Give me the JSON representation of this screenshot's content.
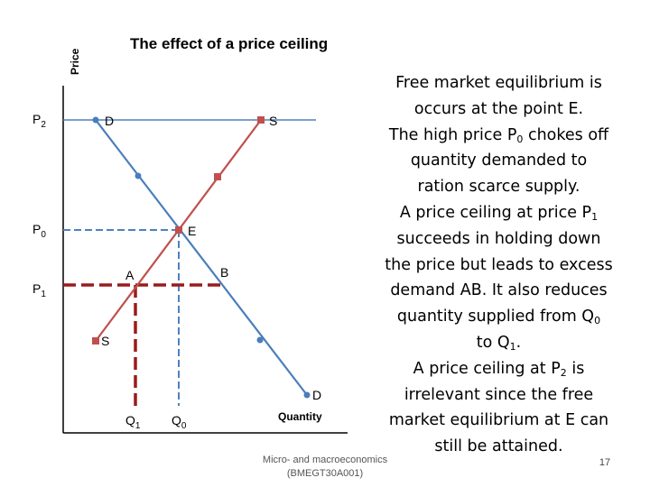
{
  "title": "The effect of a price ceiling",
  "axes": {
    "y_label": "Price",
    "x_label": "Quantity"
  },
  "price_labels": {
    "p2": {
      "base": "P",
      "sub": "2"
    },
    "p0": {
      "base": "P",
      "sub": "0"
    },
    "p1": {
      "base": "P",
      "sub": "1"
    }
  },
  "quantity_labels": {
    "q1": {
      "base": "Q",
      "sub": "1"
    },
    "q0": {
      "base": "Q",
      "sub": "0"
    }
  },
  "curve_labels": {
    "demand_top": "D",
    "demand_bottom": "D",
    "supply_top": "S",
    "supply_bottom": "S"
  },
  "point_labels": {
    "e": "E",
    "a": "A",
    "b": "B"
  },
  "colors": {
    "demand": "#4a7ebb",
    "supply": "#c0504d",
    "dashed_blue": "#4f81bd",
    "ceiling": "#9b1b1b",
    "axis": "#000000"
  },
  "explanation": {
    "l1": "Free market equilibrium is",
    "l2": "occurs at the point E.",
    "l3a": "The high price P",
    "l3sub": "0",
    "l3b": " chokes off",
    "l4": "quantity demanded to",
    "l5": "ration scarce supply.",
    "l6a": "A price ceiling at price P",
    "l6sub": "1",
    "l7": "succeeds in holding down",
    "l8": "the price but leads to excess",
    "l9": "demand AB. It also reduces",
    "l10a": "quantity supplied from Q",
    "l10sub": "0",
    "l11a": "to Q",
    "l11sub": "1",
    "l11b": ".",
    "l12a": "A price ceiling at P",
    "l12sub": "2",
    "l12b": " is",
    "l13": "irrelevant since the free",
    "l14": "market equilibrium at E can",
    "l15": "still be attained."
  },
  "footer": {
    "line1": "Micro- and macroeconomics",
    "line2": "(BMEGT30A001)"
  },
  "page_number": "17"
}
